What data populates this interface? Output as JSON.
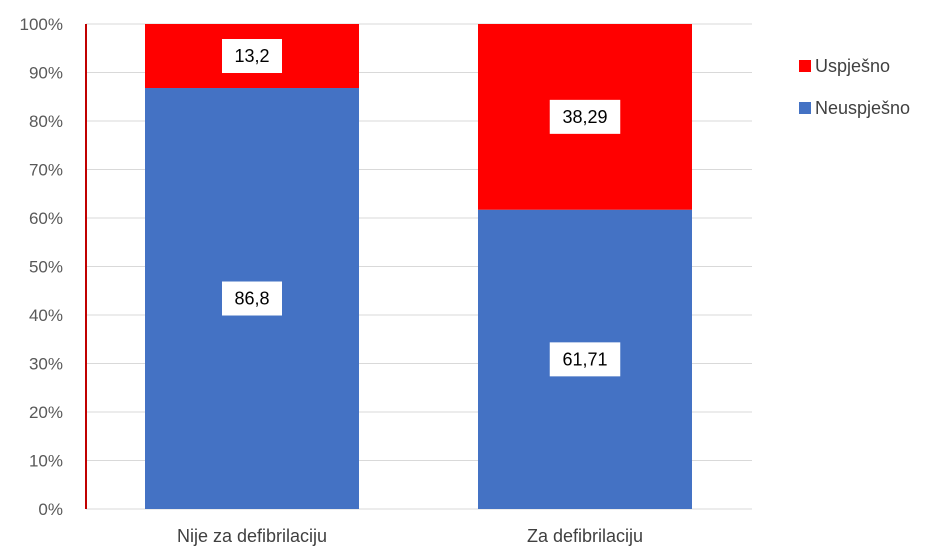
{
  "chart_data": {
    "type": "bar",
    "stacked": true,
    "percent_stacked": true,
    "categories": [
      "Nije za defibrilaciju",
      "Za defibrilaciju"
    ],
    "series": [
      {
        "name": "Neuspješno",
        "values": [
          86.8,
          61.71
        ],
        "color": "#4472C4",
        "labels": [
          "86,8",
          "61,71"
        ]
      },
      {
        "name": "Uspješno",
        "values": [
          13.2,
          38.29
        ],
        "color": "#FF0000",
        "labels": [
          "13,2",
          "38,29"
        ]
      }
    ],
    "legend_order": [
      "Uspješno",
      "Neuspješno"
    ],
    "legend_position": "right",
    "ylim": [
      0,
      100
    ],
    "y_ticks": [
      {
        "value": 0,
        "label": "0%"
      },
      {
        "value": 10,
        "label": "10%"
      },
      {
        "value": 20,
        "label": "20%"
      },
      {
        "value": 30,
        "label": "30%"
      },
      {
        "value": 40,
        "label": "40%"
      },
      {
        "value": 50,
        "label": "50%"
      },
      {
        "value": 60,
        "label": "60%"
      },
      {
        "value": 70,
        "label": "70%"
      },
      {
        "value": 80,
        "label": "80%"
      },
      {
        "value": 90,
        "label": "90%"
      },
      {
        "value": 100,
        "label": "100%"
      }
    ],
    "grid": true,
    "axis_color": "#C00000",
    "grid_color": "#D9D9D9"
  }
}
